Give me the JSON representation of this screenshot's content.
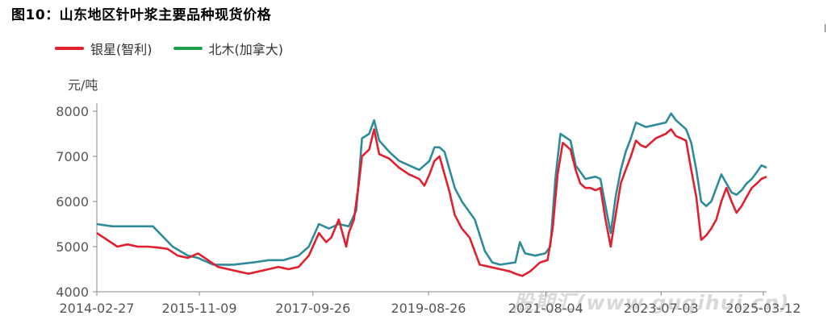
{
  "figure": {
    "title": "图10：山东地区针叶浆主要品种现货价格",
    "unit": "元/吨",
    "watermark": "股期汇(www.guqihui.cn)"
  },
  "chart_data": {
    "type": "line",
    "ylim": [
      4000,
      8000
    ],
    "yticks": [
      4000,
      5000,
      6000,
      7000,
      8000
    ],
    "xlim": [
      "2014-02-27",
      "2025-04-01"
    ],
    "xticks": [
      "2014-02-27",
      "2015-11-09",
      "2017-09-26",
      "2019-08-26",
      "2021-08-04",
      "2023-07-03",
      "2025-03-12"
    ],
    "grid": false,
    "legend_position": "top-left",
    "series": [
      {
        "name": "银星(智利)",
        "color": "#e0202e",
        "points": [
          [
            "2014-02-27",
            5300
          ],
          [
            "2014-05-01",
            5150
          ],
          [
            "2014-07-01",
            5000
          ],
          [
            "2014-09-01",
            5050
          ],
          [
            "2014-11-01",
            5000
          ],
          [
            "2015-01-01",
            5000
          ],
          [
            "2015-03-01",
            4980
          ],
          [
            "2015-05-01",
            4950
          ],
          [
            "2015-07-01",
            4800
          ],
          [
            "2015-09-01",
            4750
          ],
          [
            "2015-11-01",
            4850
          ],
          [
            "2016-01-01",
            4700
          ],
          [
            "2016-03-01",
            4550
          ],
          [
            "2016-05-01",
            4500
          ],
          [
            "2016-07-01",
            4450
          ],
          [
            "2016-09-01",
            4400
          ],
          [
            "2016-11-01",
            4450
          ],
          [
            "2017-01-01",
            4500
          ],
          [
            "2017-03-01",
            4550
          ],
          [
            "2017-05-01",
            4500
          ],
          [
            "2017-07-01",
            4550
          ],
          [
            "2017-09-01",
            4800
          ],
          [
            "2017-11-01",
            5300
          ],
          [
            "2017-12-15",
            5100
          ],
          [
            "2018-01-15",
            5200
          ],
          [
            "2018-03-01",
            5600
          ],
          [
            "2018-04-15",
            5000
          ],
          [
            "2018-05-01",
            5300
          ],
          [
            "2018-06-01",
            5600
          ],
          [
            "2018-07-01",
            6400
          ],
          [
            "2018-07-20",
            7000
          ],
          [
            "2018-09-01",
            7150
          ],
          [
            "2018-10-01",
            7600
          ],
          [
            "2018-11-01",
            7050
          ],
          [
            "2019-01-01",
            6950
          ],
          [
            "2019-03-01",
            6750
          ],
          [
            "2019-05-01",
            6600
          ],
          [
            "2019-07-01",
            6500
          ],
          [
            "2019-08-01",
            6350
          ],
          [
            "2019-09-01",
            6600
          ],
          [
            "2019-10-01",
            6900
          ],
          [
            "2019-11-01",
            7000
          ],
          [
            "2020-01-01",
            6200
          ],
          [
            "2020-02-01",
            5700
          ],
          [
            "2020-03-15",
            5400
          ],
          [
            "2020-05-01",
            5200
          ],
          [
            "2020-07-01",
            4600
          ],
          [
            "2020-09-01",
            4550
          ],
          [
            "2020-11-01",
            4500
          ],
          [
            "2021-01-01",
            4450
          ],
          [
            "2021-02-01",
            4400
          ],
          [
            "2021-03-15",
            4350
          ],
          [
            "2021-05-01",
            4450
          ],
          [
            "2021-06-01",
            4550
          ],
          [
            "2021-07-01",
            4650
          ],
          [
            "2021-08-15",
            4700
          ],
          [
            "2021-09-15",
            5400
          ],
          [
            "2021-10-15",
            6600
          ],
          [
            "2021-11-15",
            7300
          ],
          [
            "2022-01-01",
            7150
          ],
          [
            "2022-02-01",
            6700
          ],
          [
            "2022-03-01",
            6400
          ],
          [
            "2022-04-01",
            6300
          ],
          [
            "2022-05-01",
            6300
          ],
          [
            "2022-06-01",
            6250
          ],
          [
            "2022-07-01",
            6300
          ],
          [
            "2022-08-01",
            5600
          ],
          [
            "2022-09-01",
            5000
          ],
          [
            "2022-10-01",
            5700
          ],
          [
            "2022-11-01",
            6400
          ],
          [
            "2022-12-01",
            6700
          ],
          [
            "2023-01-01",
            7000
          ],
          [
            "2023-02-01",
            7350
          ],
          [
            "2023-03-01",
            7250
          ],
          [
            "2023-04-01",
            7200
          ],
          [
            "2023-05-01",
            7300
          ],
          [
            "2023-06-01",
            7400
          ],
          [
            "2023-07-01",
            7450
          ],
          [
            "2023-08-01",
            7500
          ],
          [
            "2023-09-01",
            7600
          ],
          [
            "2023-10-01",
            7450
          ],
          [
            "2023-11-01",
            7400
          ],
          [
            "2023-12-01",
            7350
          ],
          [
            "2024-01-01",
            6700
          ],
          [
            "2024-02-01",
            6100
          ],
          [
            "2024-03-01",
            5150
          ],
          [
            "2024-04-01",
            5250
          ],
          [
            "2024-05-01",
            5400
          ],
          [
            "2024-06-01",
            5600
          ],
          [
            "2024-07-01",
            6000
          ],
          [
            "2024-08-01",
            6300
          ],
          [
            "2024-09-01",
            6000
          ],
          [
            "2024-10-01",
            5750
          ],
          [
            "2024-11-01",
            5900
          ],
          [
            "2024-12-01",
            6100
          ],
          [
            "2025-01-01",
            6300
          ],
          [
            "2025-02-01",
            6400
          ],
          [
            "2025-03-01",
            6500
          ],
          [
            "2025-04-01",
            6550
          ]
        ]
      },
      {
        "name": "北木(加拿大)",
        "color": "#2e8b9a",
        "points": [
          [
            "2014-02-27",
            5500
          ],
          [
            "2014-06-01",
            5450
          ],
          [
            "2014-10-01",
            5450
          ],
          [
            "2015-02-01",
            5450
          ],
          [
            "2015-06-01",
            5000
          ],
          [
            "2015-09-01",
            4800
          ],
          [
            "2015-11-01",
            4750
          ],
          [
            "2016-02-01",
            4600
          ],
          [
            "2016-06-01",
            4600
          ],
          [
            "2016-10-01",
            4650
          ],
          [
            "2017-01-01",
            4700
          ],
          [
            "2017-04-01",
            4700
          ],
          [
            "2017-07-01",
            4800
          ],
          [
            "2017-09-01",
            5000
          ],
          [
            "2017-11-01",
            5500
          ],
          [
            "2018-01-01",
            5400
          ],
          [
            "2018-03-01",
            5500
          ],
          [
            "2018-05-01",
            5450
          ],
          [
            "2018-06-15",
            5800
          ],
          [
            "2018-07-20",
            7400
          ],
          [
            "2018-09-01",
            7500
          ],
          [
            "2018-10-01",
            7800
          ],
          [
            "2018-11-01",
            7350
          ],
          [
            "2019-01-01",
            7100
          ],
          [
            "2019-03-01",
            6900
          ],
          [
            "2019-05-01",
            6800
          ],
          [
            "2019-07-01",
            6700
          ],
          [
            "2019-09-01",
            6900
          ],
          [
            "2019-10-01",
            7200
          ],
          [
            "2019-11-01",
            7200
          ],
          [
            "2019-12-01",
            7100
          ],
          [
            "2020-02-01",
            6300
          ],
          [
            "2020-03-15",
            6000
          ],
          [
            "2020-06-01",
            5600
          ],
          [
            "2020-08-01",
            4900
          ],
          [
            "2020-09-15",
            4650
          ],
          [
            "2020-11-01",
            4600
          ],
          [
            "2021-02-01",
            4650
          ],
          [
            "2021-03-01",
            5100
          ],
          [
            "2021-04-01",
            4850
          ],
          [
            "2021-06-01",
            4800
          ],
          [
            "2021-08-01",
            4850
          ],
          [
            "2021-09-01",
            5000
          ],
          [
            "2021-10-01",
            6500
          ],
          [
            "2021-11-01",
            7500
          ],
          [
            "2022-01-01",
            7350
          ],
          [
            "2022-02-01",
            6800
          ],
          [
            "2022-04-01",
            6500
          ],
          [
            "2022-06-01",
            6550
          ],
          [
            "2022-07-01",
            6500
          ],
          [
            "2022-08-01",
            5900
          ],
          [
            "2022-09-01",
            5300
          ],
          [
            "2022-10-01",
            6100
          ],
          [
            "2022-11-01",
            6700
          ],
          [
            "2022-12-01",
            7100
          ],
          [
            "2023-01-01",
            7400
          ],
          [
            "2023-02-01",
            7750
          ],
          [
            "2023-04-01",
            7650
          ],
          [
            "2023-06-01",
            7700
          ],
          [
            "2023-08-01",
            7750
          ],
          [
            "2023-09-01",
            7950
          ],
          [
            "2023-10-01",
            7800
          ],
          [
            "2023-11-01",
            7700
          ],
          [
            "2023-12-01",
            7600
          ],
          [
            "2024-01-01",
            7300
          ],
          [
            "2024-02-01",
            6700
          ],
          [
            "2024-03-01",
            6000
          ],
          [
            "2024-04-01",
            5900
          ],
          [
            "2024-05-01",
            6000
          ],
          [
            "2024-06-01",
            6300
          ],
          [
            "2024-07-01",
            6600
          ],
          [
            "2024-08-01",
            6400
          ],
          [
            "2024-09-01",
            6200
          ],
          [
            "2024-10-01",
            6150
          ],
          [
            "2024-11-01",
            6250
          ],
          [
            "2024-12-01",
            6400
          ],
          [
            "2025-01-01",
            6500
          ],
          [
            "2025-02-01",
            6650
          ],
          [
            "2025-03-01",
            6800
          ],
          [
            "2025-04-01",
            6750
          ]
        ]
      }
    ]
  }
}
